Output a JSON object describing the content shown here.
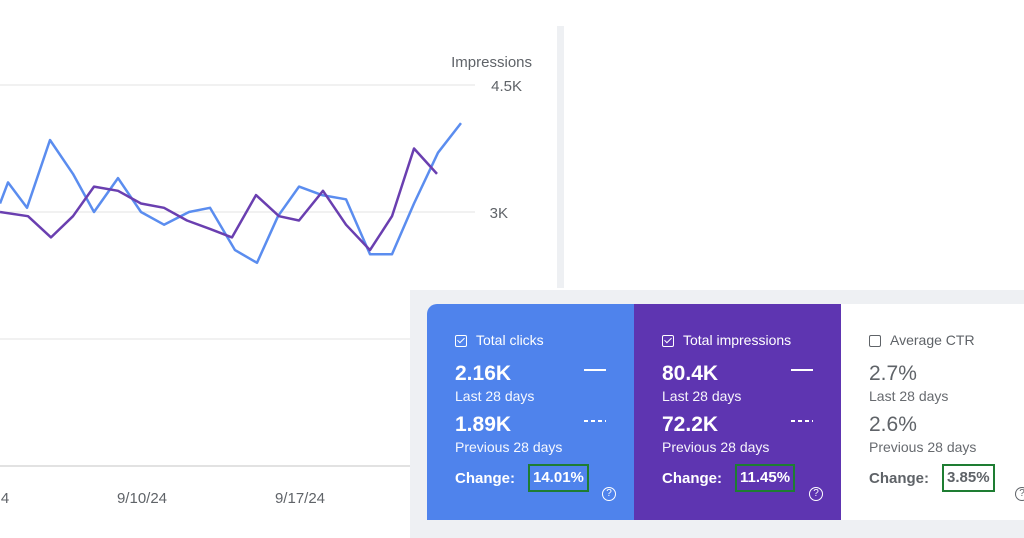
{
  "chart_data": {
    "type": "line",
    "ylabel": "Impressions",
    "y_ticks": [
      "4.5K",
      "3K"
    ],
    "x_ticks": [
      "4",
      "9/10/24",
      "9/17/24"
    ],
    "ylim": [
      1000,
      4800
    ],
    "grid": true,
    "series": [
      {
        "values": [
          3100,
          3350,
          3050,
          3850,
          3450,
          3000,
          3400,
          3000,
          2850,
          3000,
          3050,
          2550,
          2400,
          2950,
          3300,
          3200,
          3150,
          2500,
          2500,
          3100,
          3700,
          4050
        ]
      },
      {
        "values": [
          3000,
          2950,
          2700,
          2950,
          3300,
          3250,
          3100,
          3050,
          2900,
          2800,
          2700,
          3200,
          2950,
          2900,
          3250,
          2850,
          2550,
          2950,
          3750,
          3450
        ]
      }
    ]
  },
  "cards": {
    "clicks": {
      "title": "Total clicks",
      "value1": "2.16K",
      "label1": "Last 28 days",
      "value2": "1.89K",
      "label2": "Previous 28 days",
      "change_label": "Change:",
      "change_value": "14.01%",
      "help": "?",
      "color": "#4f83ec"
    },
    "impressions": {
      "title": "Total impressions",
      "value1": "80.4K",
      "label1": "Last 28 days",
      "value2": "72.2K",
      "label2": "Previous 28 days",
      "change_label": "Change:",
      "change_value": "11.45%",
      "help": "?",
      "color": "#5e35b1"
    },
    "ctr": {
      "title": "Average CTR",
      "value1": "2.7%",
      "label1": "Last 28 days",
      "value2": "2.6%",
      "label2": "Previous 28 days",
      "change_label": "Change:",
      "change_value": "3.85%",
      "help": "?"
    }
  },
  "colors": {
    "series_clicks": "#5b8def",
    "series_impressions": "#6a3fb0",
    "highlight_box": "#1e7d32"
  }
}
